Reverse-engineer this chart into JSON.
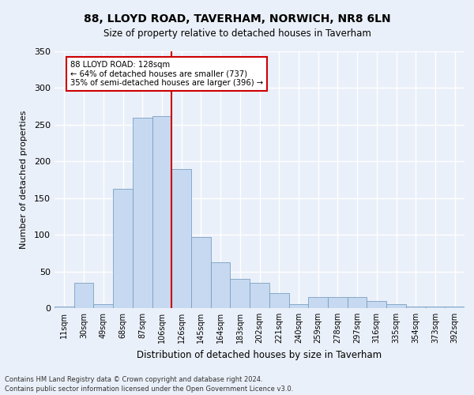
{
  "title1": "88, LLOYD ROAD, TAVERHAM, NORWICH, NR8 6LN",
  "title2": "Size of property relative to detached houses in Taverham",
  "xlabel": "Distribution of detached houses by size in Taverham",
  "ylabel": "Number of detached properties",
  "bar_labels": [
    "11sqm",
    "30sqm",
    "49sqm",
    "68sqm",
    "87sqm",
    "106sqm",
    "126sqm",
    "145sqm",
    "164sqm",
    "183sqm",
    "202sqm",
    "221sqm",
    "240sqm",
    "259sqm",
    "278sqm",
    "297sqm",
    "316sqm",
    "335sqm",
    "354sqm",
    "373sqm",
    "392sqm"
  ],
  "bar_heights": [
    2,
    35,
    5,
    163,
    260,
    262,
    190,
    97,
    62,
    40,
    35,
    20,
    5,
    15,
    15,
    15,
    10,
    5,
    2,
    2,
    2
  ],
  "bar_color": "#c6d9f0",
  "bar_edge_color": "#7a9fc2",
  "property_line_x": 6,
  "property_line_label": "88 LLOYD ROAD: 128sqm",
  "annotation_line1": "← 64% of detached houses are smaller (737)",
  "annotation_line2": "35% of semi-detached houses are larger (396) →",
  "annotation_box_color": "#ffffff",
  "annotation_box_edge": "#cc0000",
  "line_color": "#cc0000",
  "ylim": [
    0,
    350
  ],
  "yticks": [
    0,
    50,
    100,
    150,
    200,
    250,
    300,
    350
  ],
  "footer1": "Contains HM Land Registry data © Crown copyright and database right 2024.",
  "footer2": "Contains public sector information licensed under the Open Government Licence v3.0.",
  "bg_color": "#eaf0f9",
  "plot_bg_color": "#eaf0f9",
  "grid_color": "#ffffff"
}
